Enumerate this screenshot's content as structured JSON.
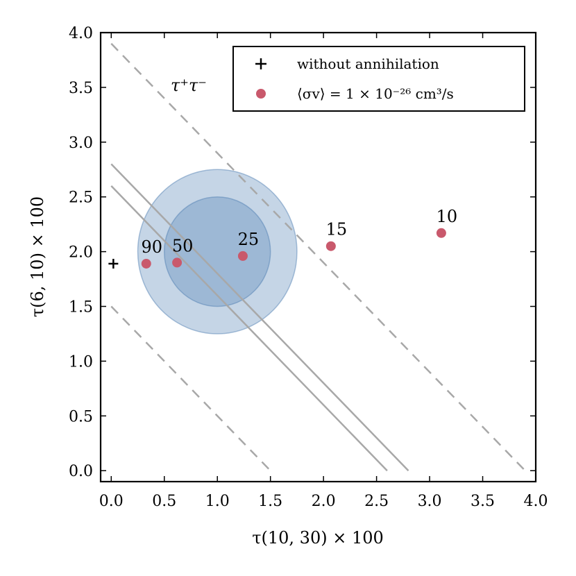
{
  "chart_data": {
    "type": "scatter",
    "xlabel": "τ(10, 30) × 100",
    "ylabel": "τ(6, 10) × 100",
    "xlim": [
      -0.1,
      4.0
    ],
    "ylim": [
      -0.1,
      4.0
    ],
    "xticks": [
      "0.0",
      "0.5",
      "1.0",
      "1.5",
      "2.0",
      "2.5",
      "3.0",
      "3.5",
      "4.0"
    ],
    "yticks": [
      "0.0",
      "0.5",
      "1.0",
      "1.5",
      "2.0",
      "2.5",
      "3.0",
      "3.5",
      "4.0"
    ],
    "grid": false,
    "annotation": "τ⁺τ⁻",
    "legend": {
      "placement": "top-right",
      "entries": [
        {
          "label": "without annihilation",
          "marker": "plus"
        },
        {
          "label": "⟨σv⟩ = 1 × 10⁻²⁶ cm³/s",
          "marker": "circle"
        }
      ]
    },
    "reference_point": {
      "x": 0.02,
      "y": 1.89
    },
    "points": [
      {
        "label": "90",
        "x": 0.33,
        "y": 1.89
      },
      {
        "label": "50",
        "x": 0.62,
        "y": 1.9
      },
      {
        "label": "25",
        "x": 1.24,
        "y": 1.96
      },
      {
        "label": "15",
        "x": 2.07,
        "y": 2.05
      },
      {
        "label": "10",
        "x": 3.11,
        "y": 2.17
      }
    ],
    "ellipses": [
      {
        "cx": 1.0,
        "cy": 2.0,
        "rx": 0.75,
        "ry": 0.75
      },
      {
        "cx": 1.0,
        "cy": 2.0,
        "rx": 0.5,
        "ry": 0.5
      }
    ],
    "solid_lines": [
      {
        "x1": 0.0,
        "y1": 2.8,
        "x2": 2.8,
        "y2": 0.0
      },
      {
        "x1": 0.0,
        "y1": 2.6,
        "x2": 2.6,
        "y2": 0.0
      }
    ],
    "dashed_lines": [
      {
        "x1": 0.0,
        "y1": 3.9,
        "x2": 3.9,
        "y2": 0.0
      },
      {
        "x1": 0.0,
        "y1": 1.5,
        "x2": 1.5,
        "y2": 0.0
      }
    ],
    "colors": {
      "points": "#c9596c",
      "ellipse_fill": "#4a7bb0",
      "ellipse_stroke": "#4a7bb0",
      "lines": "#a8a8a8",
      "reference": "#000000"
    }
  }
}
